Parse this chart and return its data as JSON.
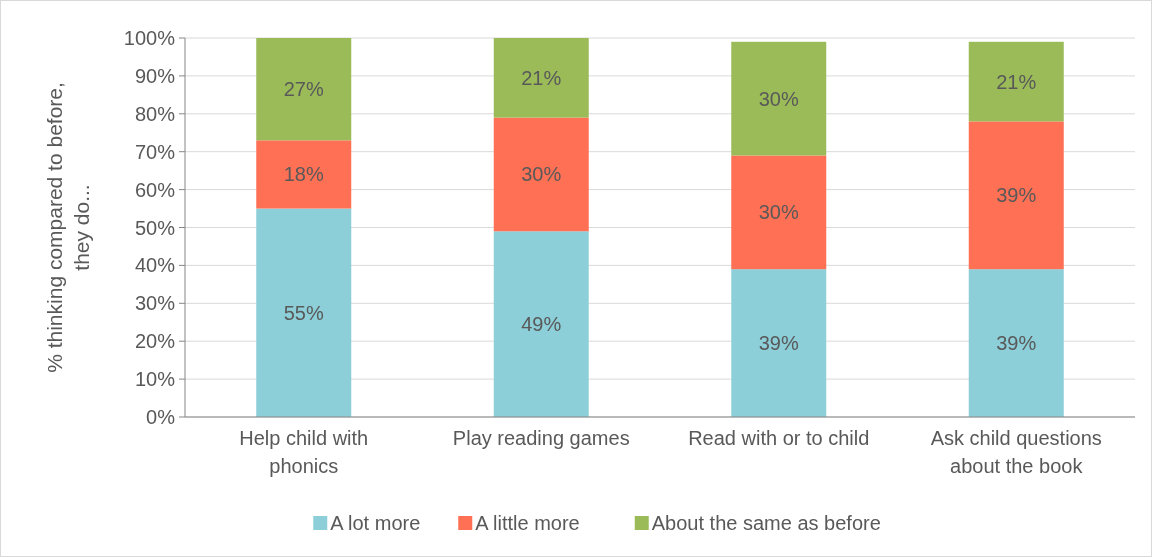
{
  "chart_data": {
    "type": "bar",
    "stacked": true,
    "ylabel": "% thinking compared to before,\nthey do...",
    "categories": [
      "Help child with\nphonics",
      "Play reading games",
      "Read with or to child",
      "Ask child questions\nabout the book"
    ],
    "series": [
      {
        "name": "A lot more",
        "color": "#8ccfd9",
        "values": [
          55,
          49,
          39,
          39
        ],
        "value_labels": [
          "55%",
          "49%",
          "39%",
          "39%"
        ]
      },
      {
        "name": "A little more",
        "color": "#ff7055",
        "values": [
          18,
          30,
          30,
          39
        ],
        "value_labels": [
          "18%",
          "30%",
          "30%",
          "39%"
        ]
      },
      {
        "name": "About the same as before",
        "color": "#9bbb59",
        "values": [
          27,
          21,
          30,
          21
        ],
        "value_labels": [
          "27%",
          "21%",
          "30%",
          "21%"
        ]
      }
    ],
    "ylim": [
      0,
      100
    ],
    "yticks": [
      {
        "value": 0,
        "label": "0%"
      },
      {
        "value": 10,
        "label": "10%"
      },
      {
        "value": 20,
        "label": "20%"
      },
      {
        "value": 30,
        "label": "30%"
      },
      {
        "value": 40,
        "label": "40%"
      },
      {
        "value": 50,
        "label": "50%"
      },
      {
        "value": 60,
        "label": "60%"
      },
      {
        "value": 70,
        "label": "70%"
      },
      {
        "value": 80,
        "label": "80%"
      },
      {
        "value": 90,
        "label": "90%"
      },
      {
        "value": 100,
        "label": "100%"
      }
    ],
    "grid": "y",
    "legend": "bottom"
  }
}
